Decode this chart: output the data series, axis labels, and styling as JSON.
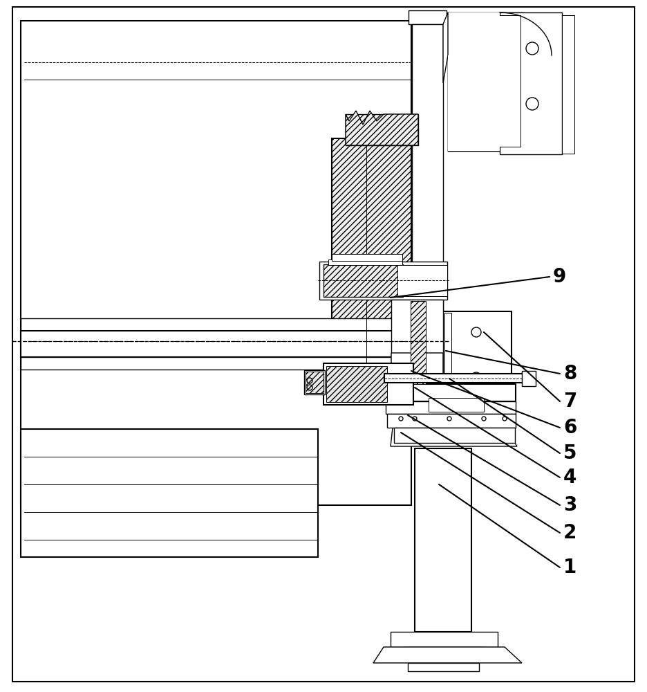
{
  "figsize": [
    9.36,
    10.0
  ],
  "dpi": 100,
  "bg_color": "#ffffff",
  "line_color": "#000000",
  "hatch_pattern": "////",
  "hatch_color": "#aaaaaa",
  "font_size_label": 20
}
